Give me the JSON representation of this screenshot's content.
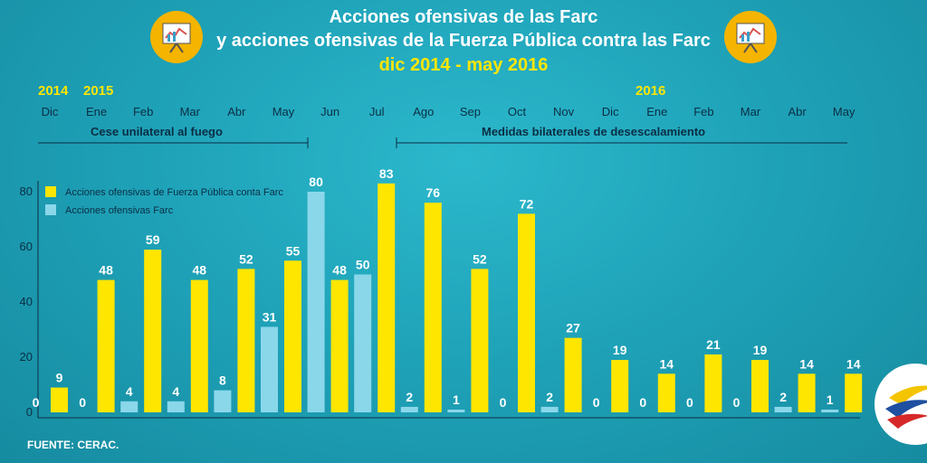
{
  "header": {
    "line1": "Acciones ofensivas de las Farc",
    "line2": "y acciones ofensivas de la Fuerza Pública contra las Farc",
    "line3": "dic 2014 - may 2016"
  },
  "years": [
    "2014",
    "2015",
    "2016"
  ],
  "months": [
    "Dic",
    "Ene",
    "Feb",
    "Mar",
    "Abr",
    "May",
    "Jun",
    "Jul",
    "Ago",
    "Sep",
    "Oct",
    "Nov",
    "Dic",
    "Ene",
    "Feb",
    "Mar",
    "Abr",
    "May"
  ],
  "periods": {
    "first": "Cese unilateral al fuego",
    "second": "Medidas bilaterales de desescalamiento"
  },
  "source": "FUENTE: CERAC.",
  "colors": {
    "yellow": "#ffe600",
    "light_blue": "#8ad7ea",
    "text_dark": "#0b2e44",
    "icon_bg": "#f5b400"
  },
  "icons": [
    "presentation-board-icon",
    "presentation-board-icon",
    "colombia-logo-icon"
  ],
  "chart_data": {
    "type": "bar",
    "y_ticks": [
      "0",
      "20",
      "40",
      "60",
      "80"
    ],
    "ylim": [
      0,
      80
    ],
    "legend_position": "top-left",
    "series": [
      {
        "name": "Acciones ofensivas de Fuerza Pública conta Farc",
        "color": "#ffe600",
        "values": [
          9,
          48,
          59,
          48,
          52,
          55,
          48,
          83,
          76,
          52,
          72,
          27,
          19,
          14,
          21,
          19,
          14,
          14
        ]
      },
      {
        "name": "Acciones ofensivas Farc",
        "color": "#8ad7ea",
        "values": [
          0,
          0,
          4,
          4,
          8,
          31,
          80,
          50,
          2,
          1,
          0,
          2,
          0,
          0,
          0,
          0,
          2,
          1
        ]
      }
    ]
  }
}
